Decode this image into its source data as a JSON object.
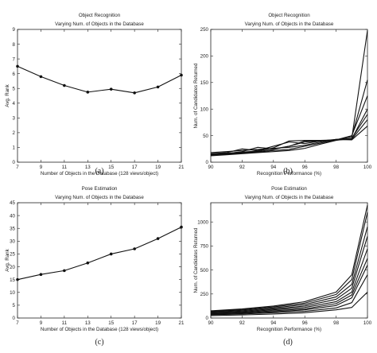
{
  "chart_data": [
    {
      "type": "line",
      "panel_label": "(a)",
      "title": "Object Recognition",
      "subtitle": "Varying Num. of Objects in the Database",
      "xlabel": "Number of Objects in the Database (128 views/object)",
      "ylabel": "Avg. Rank",
      "xlim": [
        7,
        21
      ],
      "ylim": [
        0,
        9
      ],
      "xticks": [
        7,
        9,
        11,
        13,
        15,
        17,
        19,
        21
      ],
      "yticks": [
        0,
        1,
        2,
        3,
        4,
        5,
        6,
        7,
        8,
        9
      ],
      "markers": true,
      "series": [
        {
          "x": [
            7,
            9,
            11,
            13,
            15,
            17,
            19,
            21
          ],
          "y": [
            6.5,
            5.8,
            5.2,
            4.75,
            4.95,
            4.7,
            5.1,
            5.9
          ]
        }
      ]
    },
    {
      "type": "line",
      "panel_label": "(b)",
      "title": "Object Recognition",
      "subtitle": "Varying Num. of Objects in the Database",
      "xlabel": "Recognition Performance (%)",
      "ylabel": "Num. of Candidates Returned",
      "xlim": [
        90,
        100
      ],
      "ylim": [
        0,
        250
      ],
      "xticks": [
        90,
        92,
        94,
        96,
        98,
        100
      ],
      "yticks": [
        0,
        50,
        100,
        150,
        200,
        250
      ],
      "markers": false,
      "series": [
        {
          "x": [
            90,
            91,
            92,
            93,
            94,
            95,
            96,
            97,
            98,
            99,
            100
          ],
          "y": [
            13,
            15,
            17,
            19,
            22,
            24,
            30,
            36,
            42,
            45,
            248
          ]
        },
        {
          "x": [
            90,
            91,
            92,
            93,
            94,
            95,
            96,
            97,
            98,
            99,
            100
          ],
          "y": [
            15,
            16,
            18,
            20,
            24,
            30,
            38,
            40,
            42,
            48,
            155
          ]
        },
        {
          "x": [
            90,
            91,
            92,
            93,
            94,
            95,
            96,
            97,
            98,
            99,
            100
          ],
          "y": [
            14,
            16,
            20,
            28,
            25,
            30,
            40,
            40,
            42,
            50,
            125
          ]
        },
        {
          "x": [
            90,
            91,
            92,
            93,
            94,
            95,
            96,
            97,
            98,
            99,
            100
          ],
          "y": [
            16,
            18,
            25,
            22,
            30,
            38,
            35,
            40,
            43,
            44,
            100
          ]
        },
        {
          "x": [
            90,
            91,
            92,
            93,
            94,
            95,
            96,
            97,
            98,
            99,
            100
          ],
          "y": [
            12,
            14,
            16,
            18,
            20,
            22,
            26,
            34,
            41,
            45,
            90
          ]
        },
        {
          "x": [
            90,
            91,
            92,
            93,
            94,
            95,
            96,
            97,
            98,
            99,
            100
          ],
          "y": [
            15,
            17,
            19,
            21,
            27,
            40,
            41,
            41,
            42,
            43,
            80
          ]
        },
        {
          "x": [
            90,
            91,
            92,
            93,
            94,
            95,
            96,
            97,
            98,
            99,
            100
          ],
          "y": [
            18,
            20,
            22,
            24,
            26,
            28,
            32,
            38,
            43,
            42,
            68
          ]
        }
      ]
    },
    {
      "type": "line",
      "panel_label": "(c)",
      "title": "Pose Estimation",
      "subtitle": "Varying Num. of Objects in the Database",
      "xlabel": "Number of Objects in the Database (128 views/object)",
      "ylabel": "Avg. Rank",
      "xlim": [
        7,
        21
      ],
      "ylim": [
        0,
        45
      ],
      "xticks": [
        7,
        9,
        11,
        13,
        15,
        17,
        19,
        21
      ],
      "yticks": [
        0,
        5,
        10,
        15,
        20,
        25,
        30,
        35,
        40,
        45
      ],
      "markers": true,
      "series": [
        {
          "x": [
            7,
            9,
            11,
            13,
            15,
            17,
            19,
            21
          ],
          "y": [
            15,
            17,
            18.5,
            21.5,
            25,
            27,
            31,
            35.5
          ]
        }
      ]
    },
    {
      "type": "line",
      "panel_label": "(d)",
      "title": "Pose Estimation",
      "subtitle": "Varying Num. of Objects in the Database",
      "xlabel": "Recognition Performance (%)",
      "ylabel": "Num. of Candidates Returned",
      "xlim": [
        90,
        100
      ],
      "ylim": [
        0,
        1200
      ],
      "xticks": [
        90,
        92,
        94,
        96,
        98,
        100
      ],
      "yticks": [
        0,
        250,
        500,
        750,
        1000
      ],
      "markers": false,
      "series": [
        {
          "x": [
            90,
            92,
            94,
            96,
            98,
            99,
            100
          ],
          "y": [
            75,
            95,
            125,
            170,
            270,
            450,
            1175
          ]
        },
        {
          "x": [
            90,
            92,
            94,
            96,
            98,
            99,
            100
          ],
          "y": [
            70,
            88,
            115,
            155,
            245,
            400,
            1100
          ]
        },
        {
          "x": [
            90,
            92,
            94,
            96,
            98,
            99,
            100
          ],
          "y": [
            65,
            80,
            105,
            140,
            220,
            350,
            950
          ]
        },
        {
          "x": [
            90,
            92,
            94,
            96,
            98,
            99,
            100
          ],
          "y": [
            58,
            72,
            95,
            125,
            195,
            310,
            850
          ]
        },
        {
          "x": [
            90,
            92,
            94,
            96,
            98,
            99,
            100
          ],
          "y": [
            52,
            64,
            85,
            110,
            170,
            270,
            720
          ]
        },
        {
          "x": [
            90,
            92,
            94,
            96,
            98,
            99,
            100
          ],
          "y": [
            45,
            56,
            75,
            95,
            150,
            240,
            620
          ]
        },
        {
          "x": [
            90,
            92,
            94,
            96,
            98,
            99,
            100
          ],
          "y": [
            40,
            50,
            65,
            85,
            130,
            210,
            550
          ]
        },
        {
          "x": [
            90,
            92,
            94,
            96,
            98,
            99,
            100
          ],
          "y": [
            35,
            42,
            55,
            70,
            105,
            160,
            450
          ]
        },
        {
          "x": [
            90,
            92,
            94,
            96,
            98,
            99,
            100
          ],
          "y": [
            25,
            32,
            42,
            55,
            85,
            110,
            270
          ]
        }
      ]
    }
  ]
}
